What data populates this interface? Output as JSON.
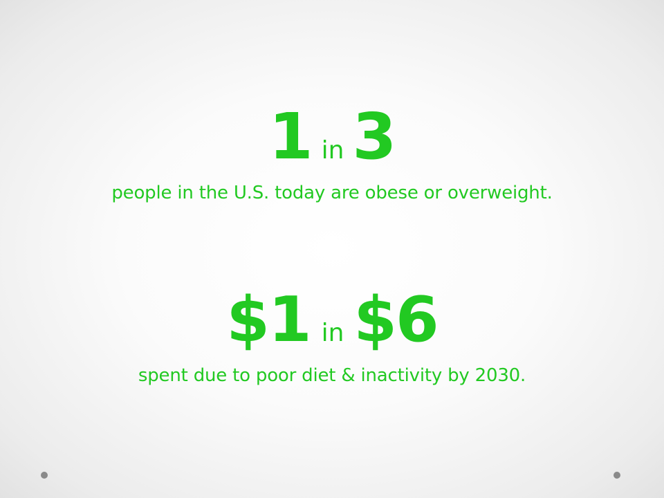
{
  "stat_one": {
    "numerator": "1",
    "connector": "in",
    "denominator": "3",
    "caption": "people in the U.S. today are obese or overweight."
  },
  "stat_two": {
    "numerator": "$1",
    "connector": "in",
    "denominator": "$6",
    "caption": "spent due to poor diet & inactivity by 2030."
  },
  "colors": {
    "text": "#22c922",
    "decoration_dot": "#8a8a8a",
    "background": "#ffffff"
  }
}
